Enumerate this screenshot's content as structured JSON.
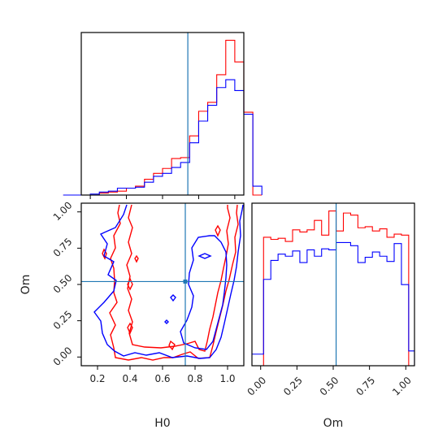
{
  "colors": {
    "series_red": "#ff0000",
    "series_blue": "#0000ff",
    "truth_line": "#1f77b4",
    "axes": "#000000"
  },
  "chart_data": [
    {
      "type": "histogram",
      "panel": "H0 marginal",
      "xlim": [
        0.15,
        1.05
      ],
      "bin_edges": [
        0.05,
        0.1,
        0.15,
        0.2,
        0.25,
        0.3,
        0.35,
        0.4,
        0.45,
        0.5,
        0.55,
        0.6,
        0.65,
        0.7,
        0.75,
        0.8,
        0.85,
        0.9,
        0.95,
        1.0,
        1.05,
        1.1,
        1.15
      ],
      "series": [
        {
          "color": "red",
          "counts": [
            0,
            0,
            0,
            0,
            2,
            3,
            4,
            7,
            9,
            16,
            22,
            27,
            37,
            38,
            60,
            85,
            94,
            122,
            157,
            135,
            84,
            0
          ]
        },
        {
          "color": "blue",
          "counts": [
            0,
            0,
            0,
            1,
            3,
            4,
            7,
            7,
            8,
            13,
            19,
            22,
            28,
            33,
            53,
            75,
            91,
            109,
            117,
            106,
            82,
            9
          ]
        }
      ],
      "truth_x": 0.74
    },
    {
      "type": "contour",
      "panel": "H0 vs Om",
      "xlabel": "H0",
      "ylabel": "Om",
      "xlim": [
        0.1,
        1.1
      ],
      "ylim": [
        -0.06,
        1.06
      ],
      "x_ticks": [
        "0.2",
        "0.4",
        "0.6",
        "0.8",
        "1.0"
      ],
      "y_ticks": [
        "0.00",
        "0.25",
        "0.50",
        "0.75",
        "1.00"
      ],
      "truth_x": 0.74,
      "truth_y": 0.52,
      "series": [
        {
          "color": "red",
          "levels": 2
        },
        {
          "color": "blue",
          "levels": 2
        }
      ]
    },
    {
      "type": "histogram",
      "panel": "Om marginal",
      "xlabel": "Om",
      "xlim": [
        -0.06,
        1.06
      ],
      "x_ticks": [
        "0.00",
        "0.25",
        "0.50",
        "0.75",
        "1.00"
      ],
      "bin_edges": [
        -0.08,
        -0.02,
        0.02,
        0.07,
        0.12,
        0.17,
        0.22,
        0.27,
        0.32,
        0.37,
        0.42,
        0.47,
        0.52,
        0.57,
        0.62,
        0.67,
        0.72,
        0.77,
        0.82,
        0.87,
        0.92,
        0.97,
        1.02,
        1.06
      ],
      "series": [
        {
          "color": "red",
          "counts": [
            0,
            0,
            122,
            120,
            121,
            118,
            129,
            127,
            129,
            138,
            124,
            147,
            128,
            145,
            143,
            131,
            132,
            128,
            130,
            122,
            125,
            124,
            0
          ]
        },
        {
          "color": "blue",
          "counts": [
            11,
            11,
            82,
            100,
            106,
            104,
            109,
            98,
            110,
            104,
            111,
            110,
            117,
            117,
            114,
            98,
            103,
            108,
            104,
            99,
            116,
            77,
            14
          ]
        }
      ],
      "truth_x": 0.52
    }
  ]
}
